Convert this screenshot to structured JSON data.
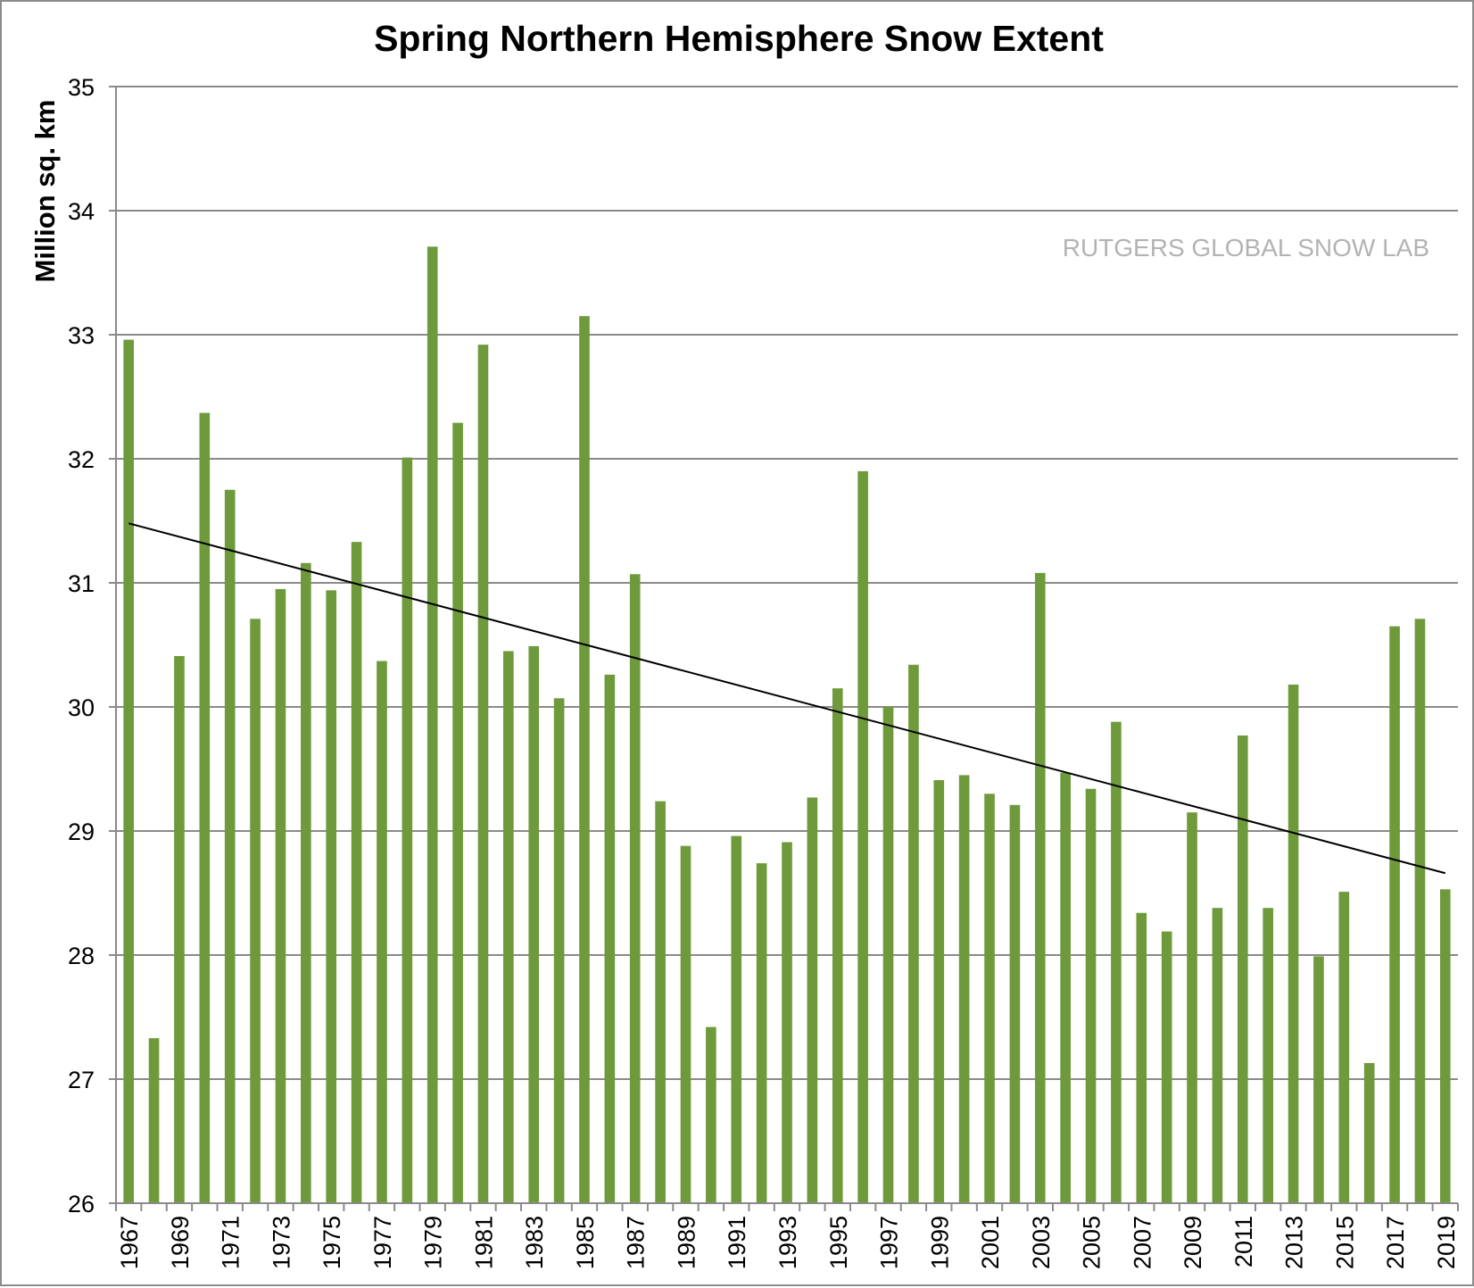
{
  "chart_data": {
    "type": "bar",
    "title": "Spring Northern Hemisphere Snow Extent",
    "ylabel": "Million sq. km",
    "xlabel": "",
    "watermark": "RUTGERS GLOBAL SNOW LAB",
    "ylim": [
      26,
      35
    ],
    "yticks": [
      26,
      27,
      28,
      29,
      30,
      31,
      32,
      33,
      34,
      35
    ],
    "grid": true,
    "bar_color": "#6f9a3c",
    "trend_color": "#000000",
    "categories": [
      "1967",
      "1968",
      "1969",
      "1970",
      "1971",
      "1972",
      "1973",
      "1974",
      "1975",
      "1976",
      "1977",
      "1978",
      "1979",
      "1980",
      "1981",
      "1982",
      "1983",
      "1984",
      "1985",
      "1986",
      "1987",
      "1988",
      "1989",
      "1990",
      "1991",
      "1992",
      "1993",
      "1994",
      "1995",
      "1996",
      "1997",
      "1998",
      "1999",
      "2000",
      "2001",
      "2002",
      "2003",
      "2004",
      "2005",
      "2006",
      "2007",
      "2008",
      "2009",
      "2010",
      "2011",
      "2012",
      "2013",
      "2014",
      "2015",
      "2016",
      "2017",
      "2018",
      "2019"
    ],
    "xtick_labels": [
      "1967",
      "1969",
      "1971",
      "1973",
      "1975",
      "1977",
      "1979",
      "1981",
      "1983",
      "1985",
      "1987",
      "1989",
      "1991",
      "1993",
      "1995",
      "1997",
      "1999",
      "2001",
      "2003",
      "2005",
      "2007",
      "2009",
      "2011",
      "2013",
      "2015",
      "2017",
      "2019"
    ],
    "values": [
      32.96,
      27.33,
      30.41,
      32.37,
      31.75,
      30.71,
      30.95,
      31.16,
      30.94,
      31.33,
      30.37,
      32.01,
      33.71,
      32.29,
      32.92,
      30.45,
      30.49,
      30.07,
      33.15,
      30.26,
      31.07,
      29.24,
      28.88,
      27.42,
      28.96,
      28.74,
      28.91,
      29.27,
      30.15,
      31.9,
      30.0,
      30.34,
      29.41,
      29.45,
      29.3,
      29.21,
      31.08,
      29.47,
      29.34,
      29.88,
      28.34,
      28.19,
      29.15,
      28.38,
      29.77,
      28.38,
      30.18,
      27.99,
      28.51,
      27.13,
      30.65,
      30.71,
      28.53
    ],
    "trend": {
      "start_year": "1967",
      "start_value": 31.48,
      "end_year": "2019",
      "end_value": 28.66
    }
  }
}
